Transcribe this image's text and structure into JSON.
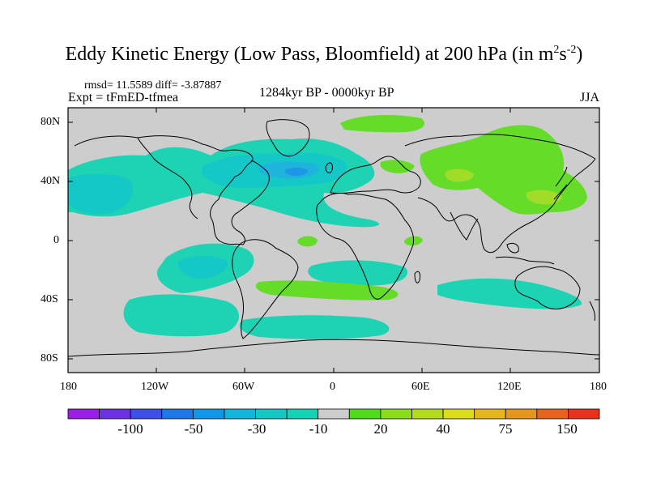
{
  "title": {
    "main": "Eddy Kinetic Energy (Low Pass, Bloomfield) at 200 hPa (in m",
    "sup1": "2",
    "mid": "s",
    "sup2": "-2",
    "end": ")"
  },
  "stats": "rmsd= 11.5589 diff= -3.87887",
  "expt": "Expt = tFmED-tfmea",
  "period": "1284kyr BP - 0000kyr BP",
  "season": "JJA",
  "lat_ticks": [
    "80N",
    "40N",
    "0",
    "40S",
    "80S"
  ],
  "lon_ticks": [
    "180",
    "120W",
    "60W",
    "0",
    "60E",
    "120E",
    "180"
  ],
  "colorbar": {
    "labels": [
      "-100",
      "-50",
      "-30",
      "-10",
      "20",
      "40",
      "75",
      "150"
    ],
    "colors": [
      "#9a1ee6",
      "#6a32e0",
      "#3c50e6",
      "#1e78e6",
      "#1496e6",
      "#14b4dc",
      "#14c8c8",
      "#14d2b4",
      "#cdcdcd",
      "#50dc1e",
      "#8cdc1e",
      "#b4dc1e",
      "#dcdc1e",
      "#e6b41e",
      "#e6961e",
      "#e6641e",
      "#e6321e"
    ]
  },
  "map_colors": {
    "background": "#cdcdcd",
    "teal": "#1ed2b4",
    "cyan": "#14c8c8",
    "blue": "#1eb4dc",
    "deepblue": "#1e96e6",
    "green": "#64dc28",
    "lightgreen": "#a0dc28"
  }
}
